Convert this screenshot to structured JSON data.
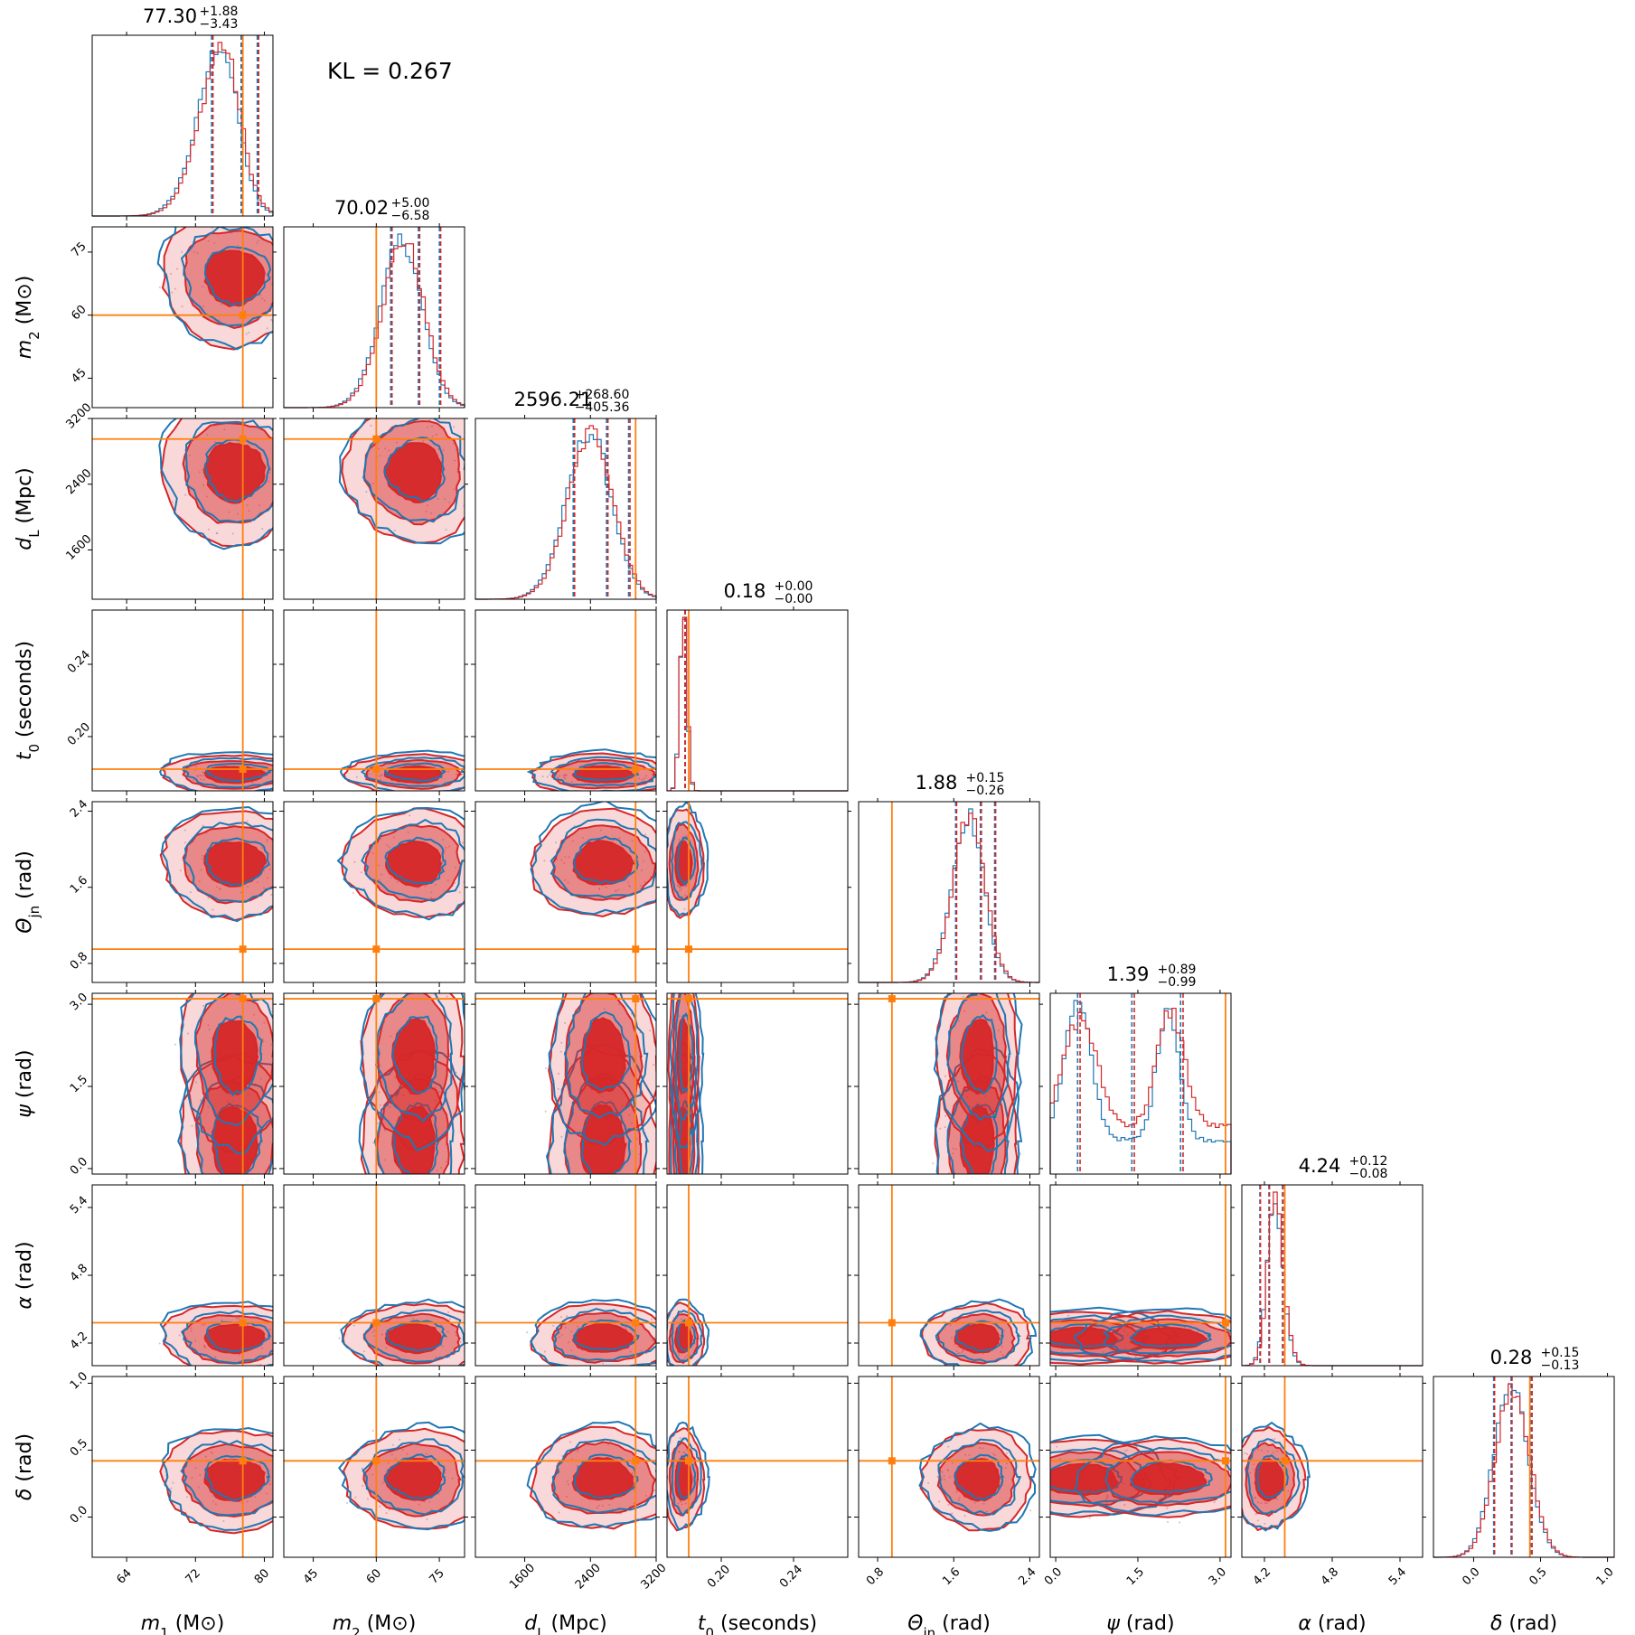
{
  "figure": {
    "kl_label": "KL = 0.267",
    "colors": {
      "model_a": "#d62728",
      "model_b": "#1f77b4",
      "truth": "#ff7f0e"
    }
  },
  "chart_data": {
    "type": "corner",
    "params": [
      {
        "key": "m1",
        "symbol": "m",
        "sub": "1",
        "unit": "(M⊙)",
        "label": "m1 (M⊙)",
        "range": [
          60,
          81
        ],
        "ticks": [
          64,
          72,
          80
        ],
        "truth": 77.5,
        "median": 77.3,
        "plus": "+1.88",
        "minus": "−3.43",
        "mean": 76.5,
        "sd": 3.2,
        "skew": -2.5
      },
      {
        "key": "m2",
        "symbol": "m",
        "sub": "2",
        "unit": "(M⊙)",
        "label": "m2 (M⊙)",
        "range": [
          38,
          81
        ],
        "ticks": [
          45,
          60,
          75
        ],
        "truth": 60,
        "median": 70.02,
        "plus": "+5.00",
        "minus": "−6.58",
        "mean": 69,
        "sd": 6.0,
        "skew": -1.5
      },
      {
        "key": "dL",
        "symbol": "d",
        "sub": "L",
        "unit": "(Mpc)",
        "label": "dL (Mpc)",
        "range": [
          1000,
          3200
        ],
        "ticks": [
          1600,
          2400,
          3200
        ],
        "truth": 2950,
        "median": 2596.21,
        "plus": "+268.60",
        "minus": "−405.36",
        "mean": 2550,
        "sd": 330,
        "skew": -1.5
      },
      {
        "key": "t0",
        "symbol": "t",
        "sub": "0",
        "unit": "(seconds)",
        "label": "t0 (seconds)",
        "range": [
          0.17,
          0.27
        ],
        "ticks": [
          0.2,
          0.24
        ],
        "truth": 0.182,
        "median": 0.18,
        "plus": "+0.00",
        "minus": "−0.00",
        "mean": 0.179,
        "sd": 0.002,
        "skew": 0
      },
      {
        "key": "theta",
        "symbol": "Θ",
        "sub": "jn",
        "unit": "(rad)",
        "label": "Θjn (rad)",
        "range": [
          0.6,
          2.5
        ],
        "ticks": [
          0.8,
          1.6,
          2.4
        ],
        "truth": 0.95,
        "median": 1.88,
        "plus": "+0.15",
        "minus": "−0.26",
        "mean": 1.85,
        "sd": 0.2,
        "skew": -1.5
      },
      {
        "key": "psi",
        "symbol": "ψ",
        "sub": "",
        "unit": "(rad)",
        "label": "ψ (rad)",
        "range": [
          -0.1,
          3.2
        ],
        "ticks": [
          0.0,
          1.5,
          3.0
        ],
        "truth": 3.1,
        "median": 1.39,
        "plus": "+0.89",
        "minus": "−0.99",
        "mean": 1.4,
        "sd": 0.9,
        "skew": 0
      },
      {
        "key": "alpha",
        "symbol": "α",
        "sub": "",
        "unit": "(rad)",
        "label": "α (rad)",
        "range": [
          4.0,
          5.6
        ],
        "ticks": [
          4.2,
          4.8,
          5.4
        ],
        "truth": 4.38,
        "median": 4.24,
        "plus": "+0.12",
        "minus": "−0.08",
        "mean": 4.24,
        "sd": 0.09,
        "skew": 2
      },
      {
        "key": "delta",
        "symbol": "δ",
        "sub": "",
        "unit": "(rad)",
        "label": "δ (rad)",
        "range": [
          -0.3,
          1.05
        ],
        "ticks": [
          0.0,
          0.5,
          1.0
        ],
        "truth": 0.42,
        "median": 0.28,
        "plus": "+0.15",
        "minus": "−0.13",
        "mean": 0.28,
        "sd": 0.13,
        "skew": 0
      }
    ]
  }
}
